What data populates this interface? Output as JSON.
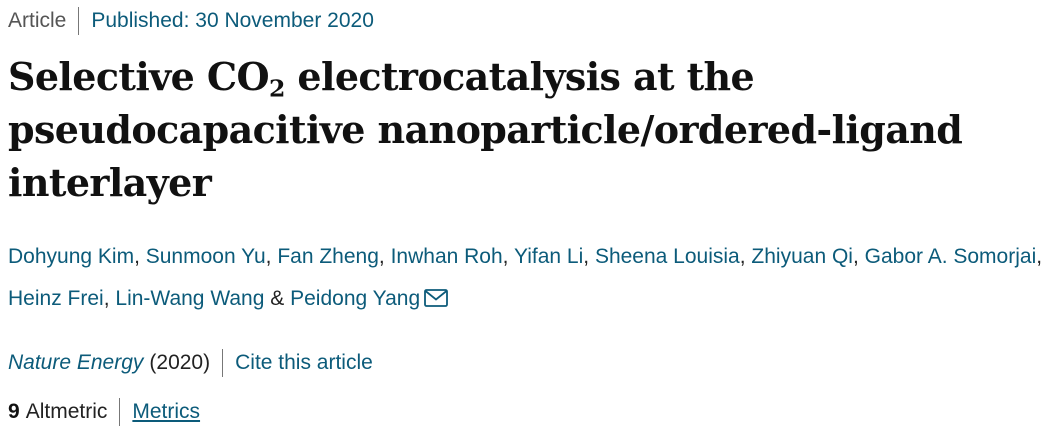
{
  "meta": {
    "article_type": "Article",
    "published": "Published: 30 November 2020"
  },
  "title": {
    "part1": "Selective CO",
    "subscript": "2",
    "part2": " electrocatalysis at the pseudocapacitive nanoparticle/ordered-ligand interlayer"
  },
  "authors": [
    "Dohyung Kim",
    "Sunmoon Yu",
    "Fan Zheng",
    "Inwhan Roh",
    "Yifan Li",
    "Sheena Louisia",
    "Zhiyuan Qi",
    "Gabor A. Somorjai",
    "Heinz Frei",
    "Lin-Wang Wang",
    "Peidong Yang"
  ],
  "separators": {
    "comma": ",",
    "ampersand": "&"
  },
  "icons": {
    "mail": "mail-icon"
  },
  "journal": {
    "name": "Nature Energy",
    "year": "(2020)",
    "cite_label": "Cite this article"
  },
  "metrics": {
    "altmetric_score": "9",
    "altmetric_label": "Altmetric",
    "metrics_label": "Metrics"
  },
  "colors": {
    "link": "#0c5b7a",
    "text": "#222222"
  }
}
